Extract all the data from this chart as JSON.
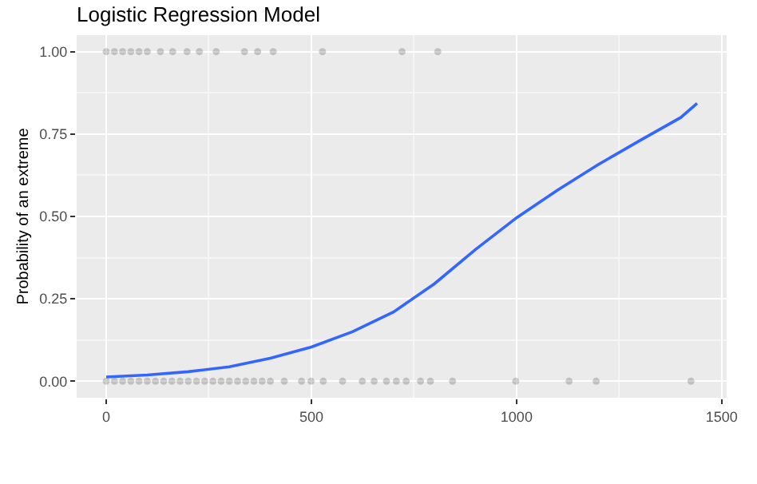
{
  "chart_data": {
    "type": "scatter",
    "title": "Logistic Regression Model",
    "ylabel": "Probability of an extreme",
    "xlim": [
      -72,
      1512
    ],
    "xticks": [
      0,
      500,
      1000,
      1500
    ],
    "ylim": [
      -0.05,
      1.05
    ],
    "yticks": [
      {
        "value": 0,
        "label": "0.00"
      },
      {
        "value": 0.25,
        "label": "0.25"
      },
      {
        "value": 0.5,
        "label": "0.50"
      },
      {
        "value": 0.75,
        "label": "0.75"
      },
      {
        "value": 1,
        "label": "1.00"
      }
    ],
    "grid": true,
    "marker": "circle",
    "series": [
      {
        "color": "#000000",
        "x": [
          0,
          20,
          40,
          60,
          80,
          100,
          132,
          162,
          197,
          227,
          268,
          337,
          369,
          407,
          527,
          721,
          808
        ],
        "values": [
          1,
          1,
          1,
          1,
          1,
          1,
          1,
          1,
          1,
          1,
          1,
          1,
          1,
          1,
          1,
          1,
          1
        ]
      },
      {
        "color": "#000000",
        "x": [
          0,
          20,
          40,
          60,
          80,
          100,
          120,
          140,
          160,
          180,
          200,
          220,
          240,
          260,
          280,
          300,
          320,
          340,
          360,
          380,
          400,
          434,
          476,
          499,
          529,
          576,
          624,
          653,
          683,
          707,
          731,
          766,
          790,
          844,
          998,
          1128,
          1194,
          1425
        ],
        "values": [
          0,
          0,
          0,
          0,
          0,
          0,
          0,
          0,
          0,
          0,
          0,
          0,
          0,
          0,
          0,
          0,
          0,
          0,
          0,
          0,
          0,
          0,
          0,
          0,
          0,
          0,
          0,
          0,
          0,
          0,
          0,
          0,
          0,
          0,
          0,
          0,
          0,
          0
        ]
      },
      {
        "type": "line",
        "color": "#3366ff",
        "line_style": "solid",
        "marker": "none",
        "x": [
          0,
          100,
          200,
          300,
          400,
          500,
          600,
          700,
          800,
          900,
          1000,
          1100,
          1200,
          1300,
          1400,
          1440
        ],
        "values": [
          0.013,
          0.019,
          0.029,
          0.044,
          0.07,
          0.104,
          0.15,
          0.21,
          0.296,
          0.4,
          0.496,
          0.58,
          0.658,
          0.73,
          0.8,
          0.843
        ]
      }
    ]
  }
}
